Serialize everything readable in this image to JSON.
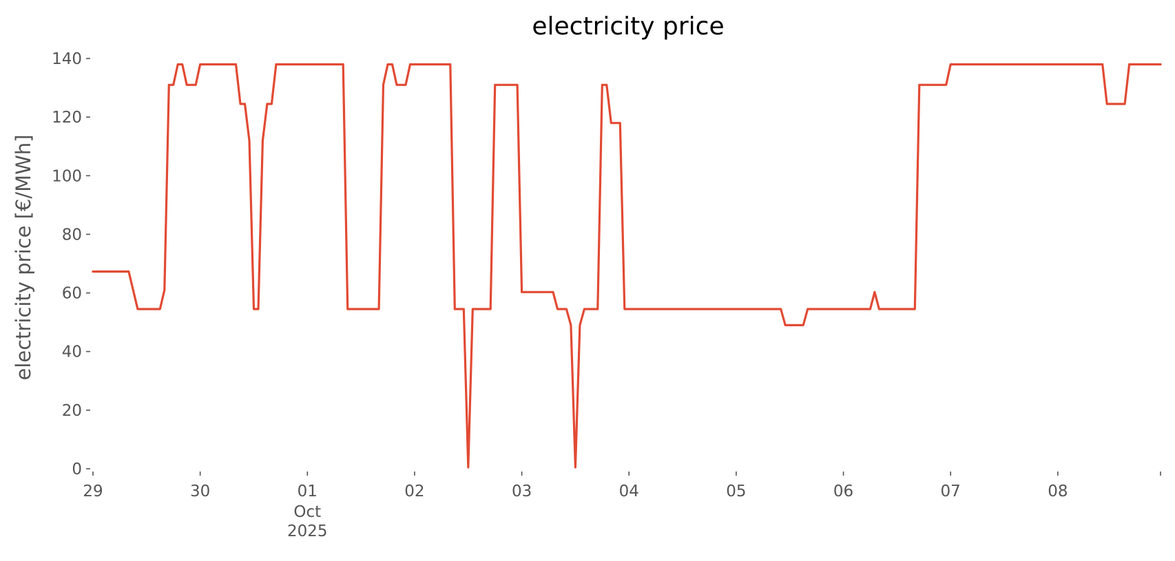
{
  "chart_data": {
    "type": "line",
    "title": "electricity price",
    "xlabel": "",
    "ylabel": "electricity price [€/MWh]",
    "xlim": [
      "2025-09-29 00:00",
      "2025-10-08 23:00"
    ],
    "ylim": [
      0,
      140
    ],
    "yticks": [
      0,
      20,
      40,
      60,
      80,
      100,
      120,
      140
    ],
    "xticks": [
      {
        "date": "2025-09-29",
        "label": "29"
      },
      {
        "date": "2025-09-30",
        "label": "30"
      },
      {
        "date": "2025-10-01",
        "label": "01",
        "sublabel": "Oct",
        "sublabel2": "2025"
      },
      {
        "date": "2025-10-02",
        "label": "02"
      },
      {
        "date": "2025-10-03",
        "label": "03"
      },
      {
        "date": "2025-10-04",
        "label": "04"
      },
      {
        "date": "2025-10-05",
        "label": "05"
      },
      {
        "date": "2025-10-06",
        "label": "06"
      },
      {
        "date": "2025-10-07",
        "label": "07"
      },
      {
        "date": "2025-10-08",
        "label": "08"
      }
    ],
    "grid": false,
    "legend": "none",
    "series": [
      {
        "color": "#E24A33",
        "points": [
          [
            "2025-09-29 00:00",
            67.3
          ],
          [
            "2025-09-29 08:00",
            67.3
          ],
          [
            "2025-09-29 10:00",
            54.5
          ],
          [
            "2025-09-29 15:00",
            54.5
          ],
          [
            "2025-09-29 16:00",
            61.0
          ],
          [
            "2025-09-29 17:00",
            131.0
          ],
          [
            "2025-09-29 18:00",
            131.0
          ],
          [
            "2025-09-29 19:00",
            138.0
          ],
          [
            "2025-09-29 20:00",
            138.0
          ],
          [
            "2025-09-29 21:00",
            131.0
          ],
          [
            "2025-09-29 23:00",
            131.0
          ],
          [
            "2025-09-30 00:00",
            138.0
          ],
          [
            "2025-09-30 08:00",
            138.0
          ],
          [
            "2025-09-30 09:00",
            124.5
          ],
          [
            "2025-09-30 10:00",
            124.5
          ],
          [
            "2025-09-30 11:00",
            112.0
          ],
          [
            "2025-09-30 12:00",
            54.5
          ],
          [
            "2025-09-30 13:00",
            54.5
          ],
          [
            "2025-09-30 14:00",
            112.0
          ],
          [
            "2025-09-30 15:00",
            124.5
          ],
          [
            "2025-09-30 16:00",
            124.5
          ],
          [
            "2025-09-30 17:00",
            138.0
          ],
          [
            "2025-10-01 08:00",
            138.0
          ],
          [
            "2025-10-01 09:00",
            54.5
          ],
          [
            "2025-10-01 16:00",
            54.5
          ],
          [
            "2025-10-01 17:00",
            131.0
          ],
          [
            "2025-10-01 18:00",
            138.0
          ],
          [
            "2025-10-01 19:00",
            138.0
          ],
          [
            "2025-10-01 20:00",
            131.0
          ],
          [
            "2025-10-01 22:00",
            131.0
          ],
          [
            "2025-10-01 23:00",
            138.0
          ],
          [
            "2025-10-02 08:00",
            138.0
          ],
          [
            "2025-10-02 09:00",
            54.5
          ],
          [
            "2025-10-02 11:00",
            54.5
          ],
          [
            "2025-10-02 12:00",
            0.5
          ],
          [
            "2025-10-02 13:00",
            54.5
          ],
          [
            "2025-10-02 17:00",
            54.5
          ],
          [
            "2025-10-02 18:00",
            131.0
          ],
          [
            "2025-10-02 23:00",
            131.0
          ],
          [
            "2025-10-03 00:00",
            60.3
          ],
          [
            "2025-10-03 07:00",
            60.3
          ],
          [
            "2025-10-03 08:00",
            54.5
          ],
          [
            "2025-10-03 10:00",
            54.5
          ],
          [
            "2025-10-03 11:00",
            49.0
          ],
          [
            "2025-10-03 12:00",
            0.5
          ],
          [
            "2025-10-03 13:00",
            49.0
          ],
          [
            "2025-10-03 14:00",
            54.5
          ],
          [
            "2025-10-03 17:00",
            54.5
          ],
          [
            "2025-10-03 18:00",
            131.0
          ],
          [
            "2025-10-03 19:00",
            131.0
          ],
          [
            "2025-10-03 20:00",
            118.0
          ],
          [
            "2025-10-03 22:00",
            118.0
          ],
          [
            "2025-10-03 23:00",
            54.5
          ],
          [
            "2025-10-05 10:00",
            54.5
          ],
          [
            "2025-10-05 11:00",
            49.0
          ],
          [
            "2025-10-05 15:00",
            49.0
          ],
          [
            "2025-10-05 16:00",
            54.5
          ],
          [
            "2025-10-06 06:00",
            54.5
          ],
          [
            "2025-10-06 07:00",
            60.3
          ],
          [
            "2025-10-06 08:00",
            54.5
          ],
          [
            "2025-10-06 16:00",
            54.5
          ],
          [
            "2025-10-06 17:00",
            131.0
          ],
          [
            "2025-10-06 23:00",
            131.0
          ],
          [
            "2025-10-07 00:00",
            138.0
          ],
          [
            "2025-10-08 10:00",
            138.0
          ],
          [
            "2025-10-08 11:00",
            124.5
          ],
          [
            "2025-10-08 15:00",
            124.5
          ],
          [
            "2025-10-08 16:00",
            138.0
          ],
          [
            "2025-10-08 23:00",
            138.0
          ]
        ]
      }
    ]
  }
}
